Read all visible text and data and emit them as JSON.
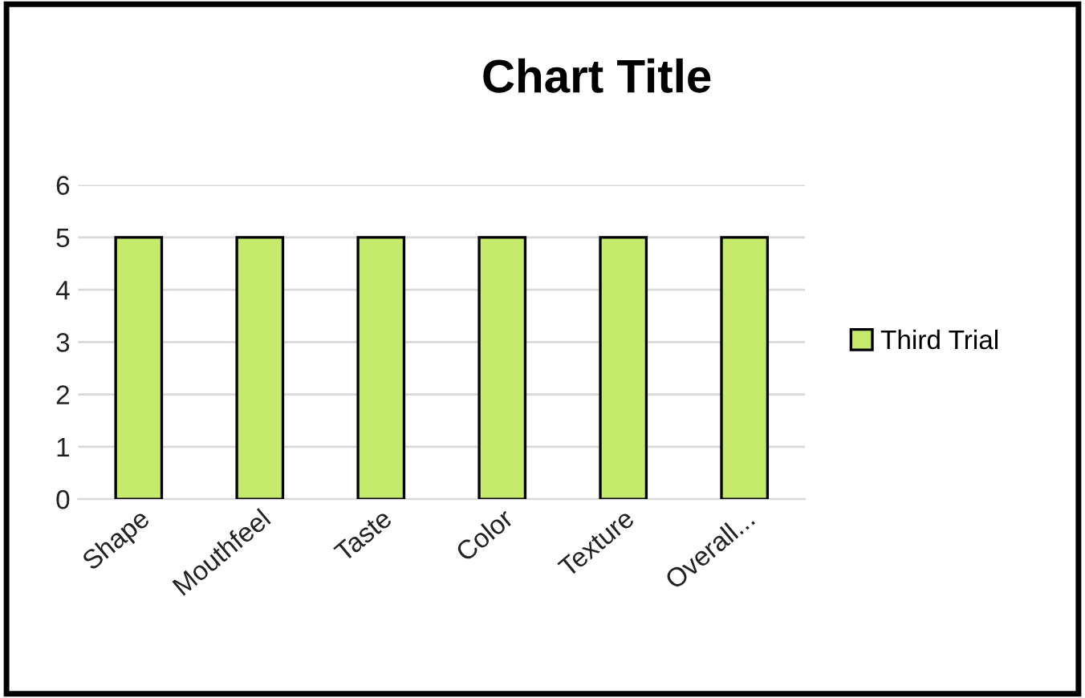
{
  "chart_data": {
    "type": "bar",
    "title": "Chart Title",
    "categories": [
      "Shape",
      "Mouthfeel",
      "Taste",
      "Color",
      "Texture",
      "Overall..."
    ],
    "series": [
      {
        "name": "Third Trial",
        "color": "#c6ea6c",
        "values": [
          5,
          5,
          5,
          5,
          5,
          5
        ]
      }
    ],
    "ylim": [
      0,
      6
    ],
    "yticks": [
      0,
      1,
      2,
      3,
      4,
      5,
      6
    ],
    "grid": "y",
    "legend": "right"
  }
}
